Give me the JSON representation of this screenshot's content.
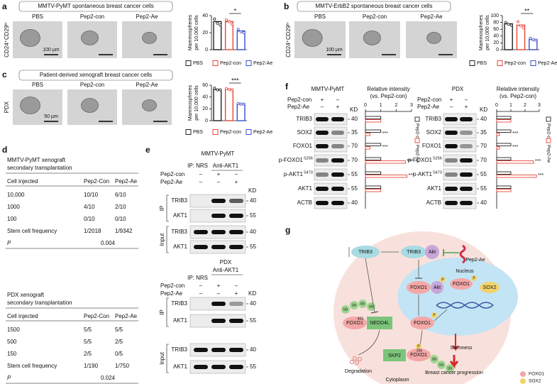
{
  "panels": {
    "a": {
      "label": "a",
      "title": "MMTV-PyMT spontaneous breast cancer cells",
      "columns": [
        "PBS",
        "Pep2-con",
        "Pep2-Ae"
      ],
      "row_label": "CD24⁺CD29ʰⁱ",
      "scale_bar": "100 µm",
      "chart": {
        "type": "bar",
        "y_label": [
          "Mammospheres",
          "per 10,000 cells"
        ],
        "categories": [
          "PBS",
          "Pep2-con",
          "Pep2-Ae"
        ],
        "values": [
          33,
          33,
          22
        ],
        "points": [
          [
            36,
            31,
            29
          ],
          [
            35,
            33,
            30
          ],
          [
            24,
            21,
            20
          ]
        ],
        "colors": [
          "#222222",
          "#e8463a",
          "#3b4fc8"
        ],
        "ylim": [
          0,
          40
        ],
        "yticks": [
          0,
          20,
          40
        ],
        "significance": "*"
      }
    },
    "b": {
      "label": "b",
      "title": "MMTV-ErbB2 spontaneous breast cancer cells",
      "columns": [
        "PBS",
        "Pep2-con",
        "Pep2-Ae"
      ],
      "row_label": "CD24⁺CD29ʰⁱ",
      "scale_bar": "100 µm",
      "chart": {
        "type": "bar",
        "y_label": [
          "Mammospheres",
          "per 10,000 cells"
        ],
        "categories": [
          "PBS",
          "Pep2-con",
          "Pep2-Ae"
        ],
        "values": [
          76,
          72,
          30
        ],
        "points": [
          [
            80,
            75,
            72
          ],
          [
            82,
            70,
            64
          ],
          [
            33,
            29,
            28
          ]
        ],
        "colors": [
          "#222222",
          "#e8463a",
          "#3b4fc8"
        ],
        "ylim": [
          0,
          100
        ],
        "yticks": [
          0,
          20,
          40,
          60,
          80,
          100
        ],
        "significance": "**"
      }
    },
    "c": {
      "label": "c",
      "title": "Patient-derived xenograft breast cancer cells",
      "columns": [
        "PBS",
        "Pep2-con",
        "Pep2-Ae"
      ],
      "row_label": "PDX",
      "scale_bar": "50 µm",
      "chart": {
        "type": "bar",
        "y_label": [
          "Mammospheres",
          "per 10,000 cells"
        ],
        "categories": [
          "PBS",
          "Pep2-con",
          "Pep2-Ae"
        ],
        "values": [
          53,
          53,
          28
        ],
        "points": [
          [
            55,
            52,
            52
          ],
          [
            54,
            53,
            52
          ],
          [
            29,
            28,
            28
          ]
        ],
        "colors": [
          "#222222",
          "#e8463a",
          "#3b4fc8"
        ],
        "ylim": [
          0,
          60
        ],
        "yticks": [
          0,
          20,
          40,
          60
        ],
        "significance": "***"
      }
    },
    "d": {
      "label": "d",
      "tables": [
        {
          "title": [
            "MMTV-PyMT xenograft",
            "secondary transplantation"
          ],
          "header": [
            "Cell injected",
            "Pep2-Con",
            "Pep2-Ae"
          ],
          "rows": [
            [
              "10,000",
              "10/10",
              "6/10"
            ],
            [
              "1000",
              "4/10",
              "2/10"
            ],
            [
              "100",
              "0/10",
              "0/10"
            ],
            [
              "Stem cell frequency",
              "1/2018",
              "1/9342"
            ]
          ],
          "p": [
            "P",
            "0.004"
          ]
        },
        {
          "title": [
            "PDX xenograft",
            "secondary transplantation"
          ],
          "header": [
            "Cell injected",
            "Pep2-Con",
            "Pep2-Ae"
          ],
          "rows": [
            [
              "1500",
              "5/5",
              "5/5"
            ],
            [
              "500",
              "5/5",
              "2/5"
            ],
            [
              "150",
              "2/5",
              "0/5"
            ],
            [
              "Stem cell frequency",
              "1/190",
              "1/750"
            ]
          ],
          "p": [
            "P",
            "0.024"
          ]
        }
      ]
    },
    "e": {
      "label": "e",
      "blots": [
        {
          "title": "MMTV-PyMT",
          "ip": "IP: NRS",
          "anti": "Anti-AKT1",
          "treatments": [
            {
              "name": "Pep2-con",
              "signs": [
                "–",
                "+",
                "–"
              ]
            },
            {
              "name": "Pep2-Ae",
              "signs": [
                "–",
                "–",
                "+"
              ]
            }
          ],
          "kd": "KD",
          "groups": [
            "IP",
            "Input"
          ],
          "rows": [
            {
              "name": "TRIB3",
              "kd": "40"
            },
            {
              "name": "AKT1",
              "kd": "55"
            },
            {
              "name": "TRIB3",
              "kd": "40"
            },
            {
              "name": "AKT1",
              "kd": "55"
            }
          ]
        },
        {
          "title": "PDX",
          "ip": "IP: NRS",
          "anti": "Anti-AKT1",
          "treatments": [
            {
              "name": "Pep2-con",
              "signs": [
                "–",
                "+",
                "–"
              ]
            },
            {
              "name": "Pep2-Ae",
              "signs": [
                "–",
                "–",
                "+"
              ]
            }
          ],
          "kd": "KD",
          "groups": [
            "IP",
            "Input"
          ],
          "rows": [
            {
              "name": "TRIB3",
              "kd": "40"
            },
            {
              "name": "AKT1",
              "kd": "55"
            },
            {
              "name": "TRIB3",
              "kd": "40"
            },
            {
              "name": "AKT1",
              "kd": "55"
            }
          ]
        }
      ]
    },
    "f": {
      "label": "f",
      "blots": [
        {
          "title": "MMTV-PyMT",
          "treatments": [
            {
              "name": "Pep2-con",
              "signs": [
                "+",
                "–"
              ]
            },
            {
              "name": "Pep2-Ae",
              "signs": [
                "–",
                "+"
              ]
            }
          ],
          "kd": "KD",
          "rows": [
            {
              "name": "TRIB3",
              "kd": "40"
            },
            {
              "name": "SOX2",
              "kd": "35"
            },
            {
              "name": "FOXO1",
              "kd": "70"
            },
            {
              "name": "p-FOXO1",
              "sup": "S256",
              "kd": "70"
            },
            {
              "name": "p-AKT1",
              "sup": "S473",
              "kd": "55"
            },
            {
              "name": "AKT1",
              "kd": "55"
            },
            {
              "name": "ACTB",
              "kd": "40"
            }
          ],
          "chart": {
            "type": "bar",
            "orientation": "horizontal",
            "title": [
              "Relative intensity",
              "(vs. Pep2-con)"
            ],
            "xlim": [
              0,
              3
            ],
            "xticks": [
              0,
              1,
              2,
              3
            ],
            "series": [
              {
                "name": "Pep2-con",
                "color": "#222222",
                "values": [
                  1,
                  1,
                  1,
                  1,
                  1,
                  1
                ]
              },
              {
                "name": "Pep2-Ae",
                "color": "#e8463a",
                "values": [
                  1,
                  0.3,
                  0.3,
                  2.6,
                  2.7,
                  1
                ]
              }
            ],
            "significance": [
              null,
              "***",
              "***",
              "***",
              "***",
              null
            ]
          }
        },
        {
          "title": "PDX",
          "treatments": [
            {
              "name": "Pep2-con",
              "signs": [
                "+",
                "–"
              ]
            },
            {
              "name": "Pep2-Ae",
              "signs": [
                "–",
                "+"
              ]
            }
          ],
          "kd": "KD",
          "rows": [
            {
              "name": "TRIB3",
              "kd": "40"
            },
            {
              "name": "SOX2",
              "kd": "35"
            },
            {
              "name": "FOXO1",
              "kd": "70"
            },
            {
              "name": "p-FOXO1",
              "sup": "S256",
              "kd": "70"
            },
            {
              "name": "p-AKT1",
              "sup": "S473",
              "kd": "55"
            },
            {
              "name": "AKT1",
              "kd": "55"
            },
            {
              "name": "ACTB",
              "kd": "40"
            }
          ],
          "chart": {
            "type": "bar",
            "orientation": "horizontal",
            "title": [
              "Relative intensity",
              "(vs. Pep2-con)"
            ],
            "xlim": [
              0,
              3
            ],
            "xticks": [
              0,
              1,
              2,
              3
            ],
            "series": [
              {
                "name": "Pep2-con",
                "color": "#222222",
                "values": [
                  1,
                  1,
                  1,
                  1,
                  1,
                  1
                ]
              },
              {
                "name": "Pep2-Ae",
                "color": "#e8463a",
                "values": [
                  1,
                  0.2,
                  0.2,
                  2.6,
                  2.8,
                  1
                ]
              }
            ],
            "significance": [
              null,
              "***",
              "***",
              "***",
              "***",
              null
            ]
          }
        }
      ]
    },
    "g": {
      "label": "g",
      "nodes": [
        "TRIB3",
        "TRIB3",
        "Akt",
        "Pep2-Ae",
        "Nucleus",
        "FOXO1",
        "Akt",
        "P",
        "FOXO1",
        "P",
        "SOX2",
        "FOXO1",
        "P",
        "Ub",
        "Ub",
        "Ub",
        "Ub",
        "FOXO1",
        "403",
        "NEDD4L",
        "SKP2",
        "FOXO1",
        "P",
        "256",
        "Ub",
        "Ub",
        "Ub",
        "Degradation",
        "Stemness",
        "Breast cancer progression",
        "Cytoplasm",
        "FOXO1",
        "SOX2"
      ]
    }
  }
}
